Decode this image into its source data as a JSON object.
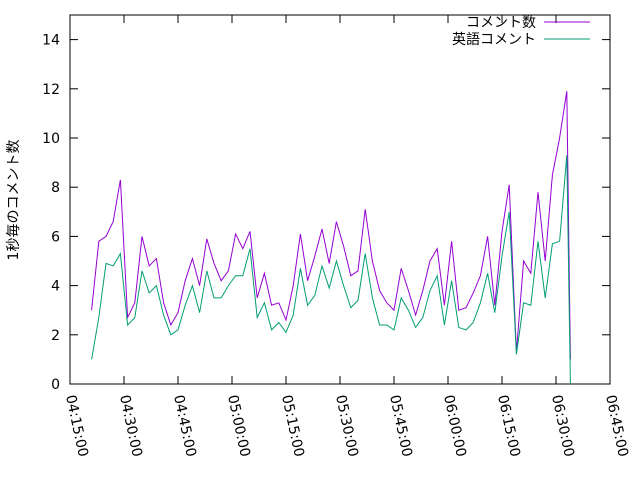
{
  "chart_data": {
    "type": "line",
    "y_label": "1秒毎のコメント数",
    "x": [
      "04:21:00",
      "04:23:00",
      "04:25:00",
      "04:27:00",
      "04:29:00",
      "04:31:00",
      "04:33:00",
      "04:35:00",
      "04:37:00",
      "04:39:00",
      "04:41:00",
      "04:43:00",
      "04:45:00",
      "04:47:00",
      "04:49:00",
      "04:51:00",
      "04:53:00",
      "04:55:00",
      "04:57:00",
      "04:59:00",
      "05:01:00",
      "05:03:00",
      "05:05:00",
      "05:07:00",
      "05:09:00",
      "05:11:00",
      "05:13:00",
      "05:15:00",
      "05:17:00",
      "05:19:00",
      "05:21:00",
      "05:23:00",
      "05:25:00",
      "05:27:00",
      "05:29:00",
      "05:31:00",
      "05:33:00",
      "05:35:00",
      "05:37:00",
      "05:39:00",
      "05:41:00",
      "05:43:00",
      "05:45:00",
      "05:47:00",
      "05:49:00",
      "05:51:00",
      "05:53:00",
      "05:55:00",
      "05:57:00",
      "05:59:00",
      "06:01:00",
      "06:03:00",
      "06:05:00",
      "06:07:00",
      "06:09:00",
      "06:11:00",
      "06:13:00",
      "06:15:00",
      "06:17:00",
      "06:19:00",
      "06:21:00",
      "06:23:00",
      "06:25:00",
      "06:27:00",
      "06:29:00",
      "06:31:00",
      "06:33:00",
      "06:34:00"
    ],
    "series": [
      {
        "name": "コメント数",
        "color": "#9400d3",
        "values": [
          3.0,
          5.8,
          6.0,
          6.6,
          8.3,
          2.7,
          3.3,
          6.0,
          4.8,
          5.1,
          3.3,
          2.4,
          2.9,
          4.2,
          5.1,
          4.0,
          5.9,
          4.9,
          4.2,
          4.6,
          6.1,
          5.5,
          6.2,
          3.5,
          4.5,
          3.2,
          3.3,
          2.6,
          4.0,
          6.1,
          4.2,
          5.2,
          6.3,
          4.9,
          6.6,
          5.6,
          4.4,
          4.6,
          7.1,
          5.0,
          3.8,
          3.3,
          3.0,
          4.7,
          3.8,
          2.8,
          3.8,
          5.0,
          5.5,
          3.2,
          5.8,
          3.0,
          3.1,
          3.7,
          4.4,
          6.0,
          3.2,
          6.2,
          8.1,
          1.3,
          5.0,
          4.5,
          7.8,
          5.0,
          8.5,
          10.0,
          11.9,
          1.0
        ]
      },
      {
        "name": "英語コメント",
        "color": "#009e73",
        "values": [
          1.0,
          2.7,
          4.9,
          4.8,
          5.3,
          2.4,
          2.7,
          4.6,
          3.7,
          4.0,
          2.8,
          2.0,
          2.2,
          3.2,
          4.0,
          2.9,
          4.6,
          3.5,
          3.5,
          4.0,
          4.4,
          4.4,
          5.5,
          2.7,
          3.3,
          2.2,
          2.5,
          2.1,
          2.8,
          4.7,
          3.2,
          3.6,
          4.8,
          3.9,
          5.0,
          4.0,
          3.1,
          3.4,
          5.3,
          3.5,
          2.4,
          2.4,
          2.2,
          3.5,
          3.0,
          2.3,
          2.7,
          3.8,
          4.4,
          2.4,
          4.2,
          2.3,
          2.2,
          2.5,
          3.3,
          4.5,
          2.9,
          5.2,
          7.0,
          1.2,
          3.3,
          3.2,
          5.8,
          3.5,
          5.7,
          5.8,
          9.3,
          0
        ]
      }
    ],
    "xlim": [
      "04:15:00",
      "06:45:00"
    ],
    "xticks": [
      "04:15:00",
      "04:30:00",
      "04:45:00",
      "05:00:00",
      "05:15:00",
      "05:30:00",
      "05:45:00",
      "06:00:00",
      "06:15:00",
      "06:30:00",
      "06:45:00"
    ],
    "ylim": [
      0,
      15
    ],
    "yticks": [
      0,
      2,
      4,
      6,
      8,
      10,
      12,
      14
    ],
    "legend": "top-right"
  }
}
